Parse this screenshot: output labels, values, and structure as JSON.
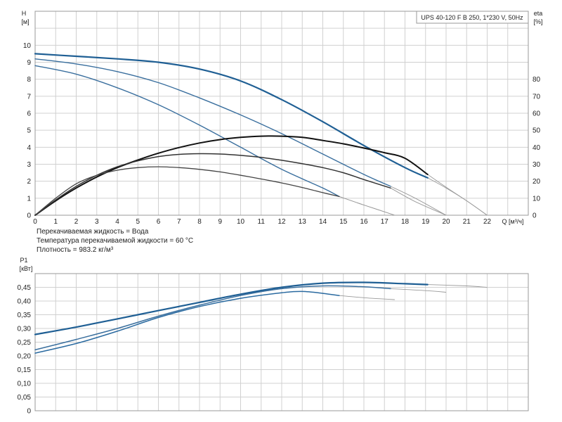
{
  "chart_data": [
    {
      "type": "line",
      "name_in_image": "head-chart",
      "title": "UPS 40-120 F B 250, 1*230 V, 50Hz",
      "ylabel": "H",
      "ylabel_unit": "[м]",
      "y2label": "eta",
      "y2label_unit": "[%]",
      "xlabel": "Q [м³/ч]",
      "xlim": [
        0,
        24
      ],
      "ylim": [
        0,
        12
      ],
      "y2lim": [
        0,
        120
      ],
      "x_ticks": [
        "0",
        "1",
        "2",
        "3",
        "4",
        "5",
        "6",
        "7",
        "8",
        "9",
        "10",
        "11",
        "12",
        "13",
        "14",
        "15",
        "16",
        "17",
        "18",
        "19",
        "20",
        "21",
        "22"
      ],
      "y_ticks": [
        "0",
        "1",
        "2",
        "3",
        "4",
        "5",
        "6",
        "7",
        "8",
        "9",
        "10"
      ],
      "y2_ticks": [
        "0",
        "10",
        "20",
        "30",
        "40",
        "50",
        "60",
        "70",
        "80"
      ],
      "grid": true,
      "head_series": [
        {
          "speed": 3,
          "color": "#1f5f94",
          "width": 2.2,
          "points": [
            [
              0,
              9.5
            ],
            [
              2,
              9.35
            ],
            [
              4,
              9.2
            ],
            [
              6,
              9.0
            ],
            [
              8,
              8.6
            ],
            [
              10,
              7.9
            ],
            [
              12,
              6.8
            ],
            [
              14,
              5.5
            ],
            [
              16,
              4.1
            ],
            [
              18,
              2.8
            ],
            [
              19.1,
              2.2
            ]
          ],
          "ext": [
            [
              19.1,
              2.2
            ],
            [
              20,
              1.6
            ],
            [
              21,
              0.85
            ],
            [
              22,
              0
            ]
          ]
        },
        {
          "speed": 2,
          "color": "#3a6f9e",
          "width": 1.4,
          "points": [
            [
              0,
              9.2
            ],
            [
              2,
              8.9
            ],
            [
              4,
              8.45
            ],
            [
              6,
              7.8
            ],
            [
              8,
              6.9
            ],
            [
              10,
              5.9
            ],
            [
              12,
              4.8
            ],
            [
              14,
              3.6
            ],
            [
              16,
              2.4
            ],
            [
              17.3,
              1.7
            ]
          ],
          "ext": [
            [
              17.3,
              1.7
            ],
            [
              18.5,
              1.0
            ],
            [
              20,
              0
            ]
          ]
        },
        {
          "speed": 1,
          "color": "#3a6f9e",
          "width": 1.4,
          "points": [
            [
              0,
              8.8
            ],
            [
              2,
              8.3
            ],
            [
              4,
              7.5
            ],
            [
              6,
              6.5
            ],
            [
              8,
              5.3
            ],
            [
              10,
              4.0
            ],
            [
              12,
              2.7
            ],
            [
              14,
              1.6
            ],
            [
              14.8,
              1.1
            ]
          ],
          "ext": [
            [
              14.8,
              1.1
            ],
            [
              16,
              0.6
            ],
            [
              17.5,
              0
            ]
          ]
        }
      ],
      "eta_series": [
        {
          "speed": 3,
          "color": "#111111",
          "width": 2.0,
          "points": [
            [
              0,
              0
            ],
            [
              1,
              8.5
            ],
            [
              2,
              16
            ],
            [
              3,
              22.5
            ],
            [
              4,
              28
            ],
            [
              5,
              32.5
            ],
            [
              6,
              36.5
            ],
            [
              7,
              39.8
            ],
            [
              8,
              42.5
            ],
            [
              9,
              44.5
            ],
            [
              10,
              45.8
            ],
            [
              11,
              46.5
            ],
            [
              12,
              46.5
            ],
            [
              13,
              45.8
            ],
            [
              14,
              44
            ],
            [
              15,
              42
            ],
            [
              16,
              39.5
            ],
            [
              17,
              36.8
            ],
            [
              18,
              33.5
            ],
            [
              19.1,
              24
            ]
          ],
          "ext": [
            [
              19.1,
              24
            ],
            [
              20,
              16.5
            ],
            [
              21,
              8.5
            ],
            [
              22,
              0
            ]
          ]
        },
        {
          "speed": 2,
          "color": "#333333",
          "width": 1.5,
          "points": [
            [
              0,
              0
            ],
            [
              1,
              9
            ],
            [
              2,
              17
            ],
            [
              3,
              23.5
            ],
            [
              4,
              28.5
            ],
            [
              5,
              32
            ],
            [
              6,
              34.5
            ],
            [
              7,
              35.8
            ],
            [
              8,
              36.2
            ],
            [
              9,
              36
            ],
            [
              10,
              35.2
            ],
            [
              11,
              34
            ],
            [
              12,
              32.3
            ],
            [
              13,
              30.3
            ],
            [
              14,
              28
            ],
            [
              15,
              25
            ],
            [
              16,
              21
            ],
            [
              17.3,
              16
            ]
          ],
          "ext": [
            [
              17.3,
              16
            ],
            [
              18.5,
              8
            ],
            [
              20,
              0
            ]
          ]
        },
        {
          "speed": 1,
          "color": "#444444",
          "width": 1.3,
          "points": [
            [
              0,
              0
            ],
            [
              1,
              10
            ],
            [
              2,
              18.5
            ],
            [
              3,
              23.5
            ],
            [
              4,
              26.5
            ],
            [
              5,
              28
            ],
            [
              6,
              28.5
            ],
            [
              7,
              28
            ],
            [
              8,
              27
            ],
            [
              9,
              25.5
            ],
            [
              10,
              23.5
            ],
            [
              11,
              21.3
            ],
            [
              12,
              19
            ],
            [
              13,
              16.3
            ],
            [
              14,
              13.3
            ],
            [
              14.8,
              11
            ]
          ],
          "ext": [
            [
              14.8,
              11
            ],
            [
              16,
              6
            ],
            [
              17.5,
              0
            ]
          ]
        }
      ],
      "notes": [
        "Перекачиваемая жидкость = Вода",
        "Температура перекачиваемой жидкости = 60 °C",
        "Плотность = 983.2 кг/м³"
      ]
    },
    {
      "type": "line",
      "name_in_image": "power-chart",
      "ylabel": "P1",
      "ylabel_unit": "[кВт]",
      "xlim": [
        0,
        24
      ],
      "ylim": [
        0,
        0.5
      ],
      "y_ticks": [
        "0",
        "0,05",
        "0,10",
        "0,15",
        "0,20",
        "0,25",
        "0,30",
        "0,35",
        "0,40",
        "0,45"
      ],
      "grid": true,
      "power_series": [
        {
          "speed": 3,
          "color": "#1f5f94",
          "width": 2.2,
          "points": [
            [
              0,
              0.278
            ],
            [
              2,
              0.305
            ],
            [
              4,
              0.335
            ],
            [
              6,
              0.365
            ],
            [
              8,
              0.395
            ],
            [
              10,
              0.425
            ],
            [
              12,
              0.45
            ],
            [
              14,
              0.465
            ],
            [
              16,
              0.468
            ],
            [
              18,
              0.463
            ],
            [
              19.1,
              0.46
            ]
          ],
          "ext": [
            [
              19.1,
              0.46
            ],
            [
              21,
              0.455
            ],
            [
              22,
              0.45
            ]
          ]
        },
        {
          "speed": 2,
          "color": "#3a6f9e",
          "width": 1.5,
          "points": [
            [
              0,
              0.222
            ],
            [
              2,
              0.26
            ],
            [
              4,
              0.3
            ],
            [
              6,
              0.345
            ],
            [
              8,
              0.385
            ],
            [
              10,
              0.42
            ],
            [
              12,
              0.445
            ],
            [
              14,
              0.455
            ],
            [
              16,
              0.452
            ],
            [
              17.3,
              0.445
            ]
          ],
          "ext": [
            [
              17.3,
              0.445
            ],
            [
              19,
              0.438
            ],
            [
              20,
              0.432
            ]
          ]
        },
        {
          "speed": 1,
          "color": "#2a6aa0",
          "width": 1.5,
          "points": [
            [
              0,
              0.21
            ],
            [
              2,
              0.245
            ],
            [
              4,
              0.29
            ],
            [
              6,
              0.34
            ],
            [
              8,
              0.38
            ],
            [
              10,
              0.41
            ],
            [
              12,
              0.43
            ],
            [
              13,
              0.435
            ],
            [
              14,
              0.428
            ],
            [
              14.8,
              0.42
            ]
          ],
          "ext": [
            [
              14.8,
              0.42
            ],
            [
              16,
              0.412
            ],
            [
              17.5,
              0.405
            ]
          ]
        }
      ]
    }
  ]
}
